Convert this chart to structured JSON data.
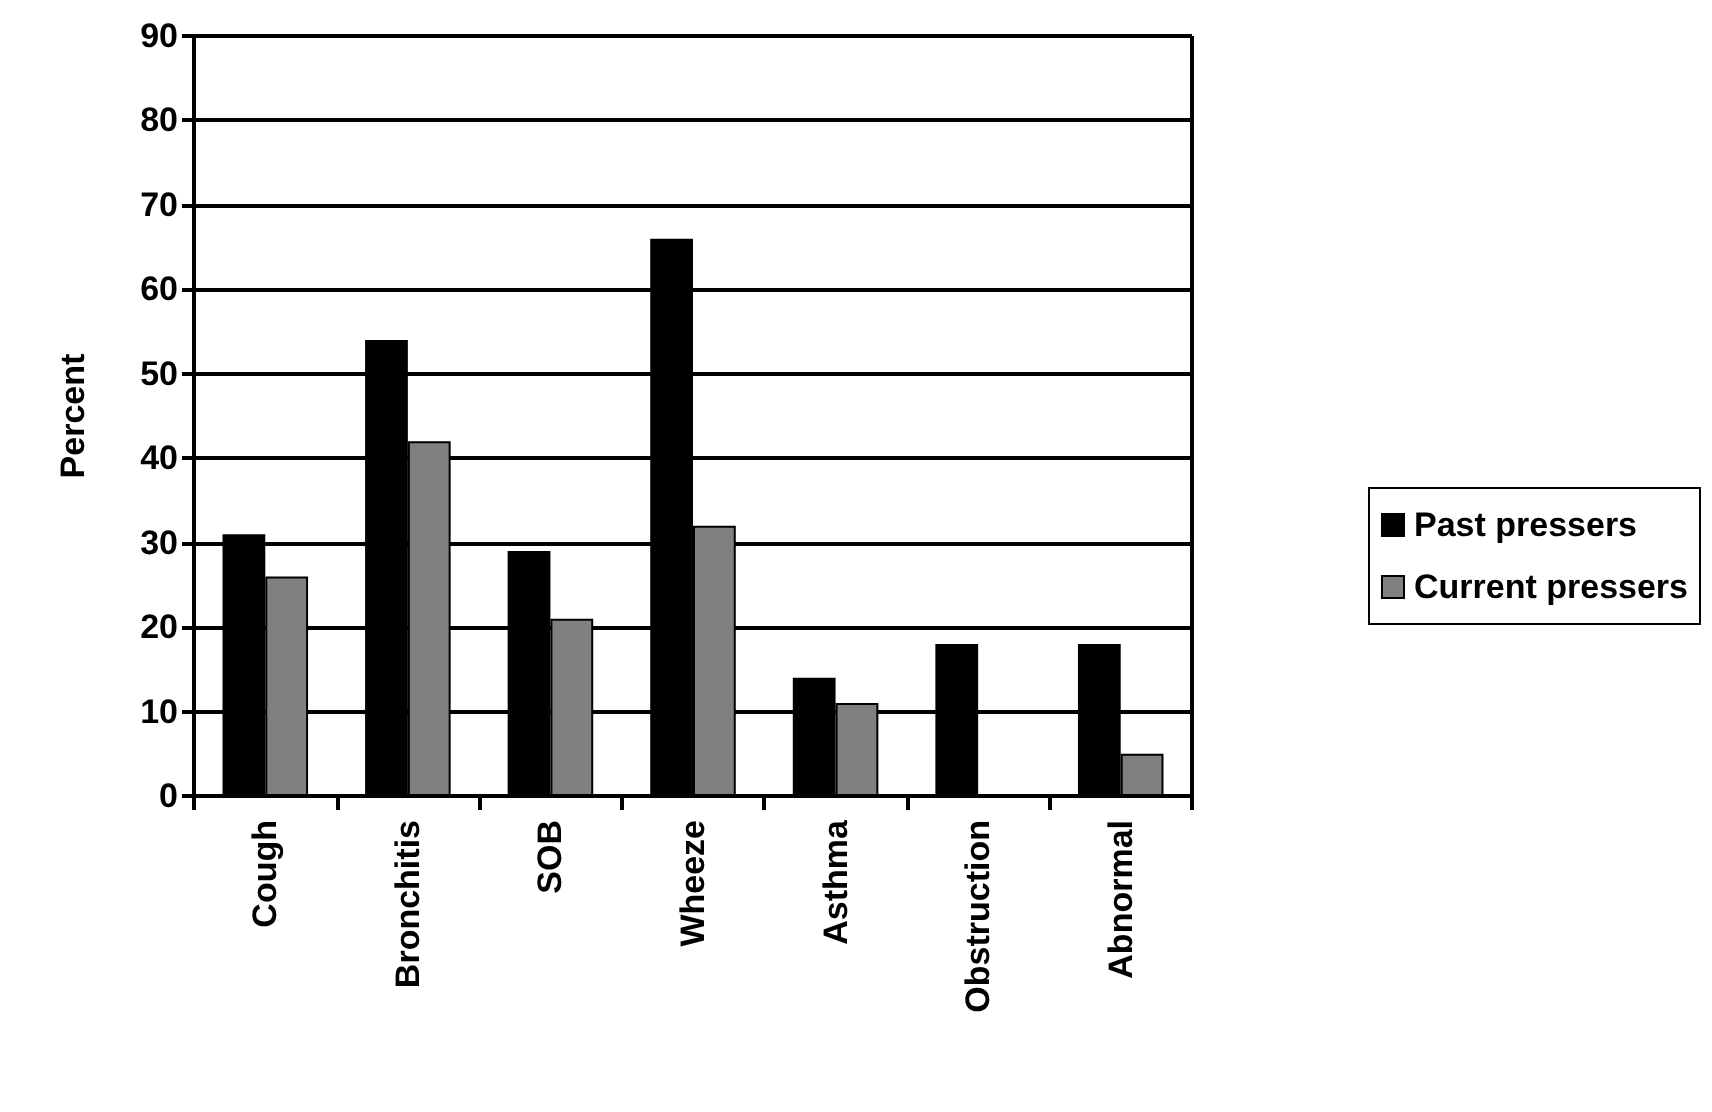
{
  "chart_data": {
    "type": "bar",
    "ylabel": "Percent",
    "categories": [
      "Cough",
      "Bronchitis",
      "SOB",
      "Wheeze",
      "Asthma",
      "Obstruction",
      "Abnormal"
    ],
    "series": [
      {
        "name": "Past pressers",
        "color": "#000000",
        "values": [
          31,
          54,
          29,
          66,
          14,
          18,
          18
        ]
      },
      {
        "name": "Current pressers",
        "color": "#808080",
        "values": [
          26,
          42,
          21,
          32,
          11,
          null,
          5
        ]
      }
    ],
    "ylim": [
      0,
      90
    ],
    "yticks": [
      0,
      10,
      20,
      30,
      40,
      50,
      60,
      70,
      80,
      90
    ],
    "grid": "y",
    "legend": "right"
  }
}
